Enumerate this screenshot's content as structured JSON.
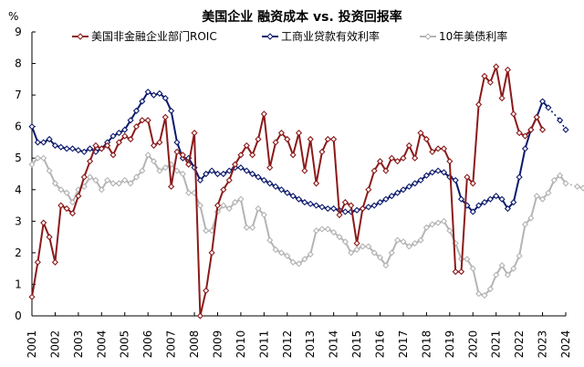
{
  "chart_data": {
    "type": "line",
    "title": "美国企业 融资成本 vs. 投资回报率",
    "ylabel": "%",
    "xlabel": "",
    "ylim": [
      0,
      9
    ],
    "y_ticks": [
      "0",
      "1",
      "2",
      "3",
      "4",
      "5",
      "6",
      "7",
      "8",
      "9"
    ],
    "xlim": [
      2001,
      2024
    ],
    "x_ticks": [
      "2001",
      "2002",
      "2003",
      "2004",
      "2005",
      "2006",
      "2007",
      "2008",
      "2009",
      "2010",
      "2011",
      "2012",
      "2013",
      "2014",
      "2015",
      "2016",
      "2017",
      "2018",
      "2019",
      "2020",
      "2021",
      "2022",
      "2023",
      "2024"
    ],
    "grid": false,
    "legend_position": "top",
    "series": [
      {
        "name": "美国非金融企业部门ROIC",
        "color": "#8b1a1a",
        "marker": "diamond-hollow",
        "points": [
          [
            2001.0,
            0.6
          ],
          [
            2001.25,
            1.7
          ],
          [
            2001.5,
            2.95
          ],
          [
            2001.75,
            2.5
          ],
          [
            2002.0,
            1.7
          ],
          [
            2002.25,
            3.5
          ],
          [
            2002.5,
            3.4
          ],
          [
            2002.75,
            3.25
          ],
          [
            2003.0,
            3.8
          ],
          [
            2003.25,
            4.4
          ],
          [
            2003.5,
            4.9
          ],
          [
            2003.75,
            5.4
          ],
          [
            2004.0,
            5.3
          ],
          [
            2004.25,
            5.4
          ],
          [
            2004.5,
            5.1
          ],
          [
            2004.75,
            5.5
          ],
          [
            2005.0,
            5.7
          ],
          [
            2005.25,
            5.6
          ],
          [
            2005.5,
            6.0
          ],
          [
            2005.75,
            6.2
          ],
          [
            2006.0,
            6.2
          ],
          [
            2006.25,
            5.4
          ],
          [
            2006.5,
            5.5
          ],
          [
            2006.75,
            6.3
          ],
          [
            2007.0,
            4.1
          ],
          [
            2007.25,
            5.2
          ],
          [
            2007.5,
            5.1
          ],
          [
            2007.75,
            4.8
          ],
          [
            2008.0,
            5.8
          ],
          [
            2008.25,
            0.0
          ],
          [
            2008.5,
            0.8
          ],
          [
            2008.75,
            2.0
          ],
          [
            2009.0,
            3.5
          ],
          [
            2009.25,
            4.0
          ],
          [
            2009.5,
            4.3
          ],
          [
            2009.75,
            4.8
          ],
          [
            2010.0,
            5.1
          ],
          [
            2010.25,
            5.4
          ],
          [
            2010.5,
            5.1
          ],
          [
            2010.75,
            5.6
          ],
          [
            2011.0,
            6.4
          ],
          [
            2011.25,
            4.7
          ],
          [
            2011.5,
            5.5
          ],
          [
            2011.75,
            5.8
          ],
          [
            2012.0,
            5.6
          ],
          [
            2012.25,
            5.1
          ],
          [
            2012.5,
            5.8
          ],
          [
            2012.75,
            4.6
          ],
          [
            2013.0,
            5.6
          ],
          [
            2013.25,
            4.2
          ],
          [
            2013.5,
            5.2
          ],
          [
            2013.75,
            5.6
          ],
          [
            2014.0,
            5.6
          ],
          [
            2014.25,
            3.2
          ],
          [
            2014.5,
            3.6
          ],
          [
            2014.75,
            3.5
          ],
          [
            2015.0,
            2.3
          ],
          [
            2015.25,
            3.4
          ],
          [
            2015.5,
            4.0
          ],
          [
            2015.75,
            4.6
          ],
          [
            2016.0,
            4.9
          ],
          [
            2016.25,
            4.6
          ],
          [
            2016.5,
            5.0
          ],
          [
            2016.75,
            4.9
          ],
          [
            2017.0,
            5.0
          ],
          [
            2017.25,
            5.4
          ],
          [
            2017.5,
            5.0
          ],
          [
            2017.75,
            5.8
          ],
          [
            2018.0,
            5.6
          ],
          [
            2018.25,
            5.2
          ],
          [
            2018.5,
            5.3
          ],
          [
            2018.75,
            5.3
          ],
          [
            2019.0,
            4.9
          ],
          [
            2019.25,
            1.4
          ],
          [
            2019.5,
            1.4
          ],
          [
            2019.75,
            4.4
          ],
          [
            2020.0,
            4.2
          ],
          [
            2020.25,
            6.7
          ],
          [
            2020.5,
            7.6
          ],
          [
            2020.75,
            7.4
          ],
          [
            2021.0,
            7.9
          ],
          [
            2021.25,
            6.9
          ],
          [
            2021.5,
            7.8
          ],
          [
            2021.75,
            6.4
          ],
          [
            2022.0,
            5.8
          ],
          [
            2022.25,
            5.7
          ],
          [
            2022.5,
            5.9
          ],
          [
            2022.75,
            6.3
          ],
          [
            2023.0,
            5.9
          ]
        ]
      },
      {
        "name": "工商业贷款有效利率",
        "color": "#0d1a6b",
        "marker": "diamond-hollow",
        "points": [
          [
            2001.0,
            6.0
          ],
          [
            2001.25,
            5.5
          ],
          [
            2001.5,
            5.5
          ],
          [
            2001.75,
            5.6
          ],
          [
            2002.0,
            5.4
          ],
          [
            2002.25,
            5.35
          ],
          [
            2002.5,
            5.3
          ],
          [
            2002.75,
            5.3
          ],
          [
            2003.0,
            5.25
          ],
          [
            2003.25,
            5.2
          ],
          [
            2003.5,
            5.3
          ],
          [
            2003.75,
            5.2
          ],
          [
            2004.0,
            5.3
          ],
          [
            2004.25,
            5.5
          ],
          [
            2004.5,
            5.7
          ],
          [
            2004.75,
            5.8
          ],
          [
            2005.0,
            5.9
          ],
          [
            2005.25,
            6.2
          ],
          [
            2005.5,
            6.5
          ],
          [
            2005.75,
            6.8
          ],
          [
            2006.0,
            7.1
          ],
          [
            2006.25,
            7.0
          ],
          [
            2006.5,
            7.05
          ],
          [
            2006.75,
            6.9
          ],
          [
            2007.0,
            6.5
          ],
          [
            2007.25,
            5.5
          ],
          [
            2007.5,
            5.0
          ],
          [
            2007.75,
            5.0
          ],
          [
            2008.0,
            4.7
          ],
          [
            2008.25,
            4.3
          ],
          [
            2008.5,
            4.5
          ],
          [
            2008.75,
            4.6
          ],
          [
            2009.0,
            4.5
          ],
          [
            2009.25,
            4.5
          ],
          [
            2009.5,
            4.6
          ],
          [
            2009.75,
            4.7
          ],
          [
            2010.0,
            4.7
          ],
          [
            2010.25,
            4.6
          ],
          [
            2010.5,
            4.5
          ],
          [
            2010.75,
            4.4
          ],
          [
            2011.0,
            4.3
          ],
          [
            2011.25,
            4.2
          ],
          [
            2011.5,
            4.1
          ],
          [
            2011.75,
            4.0
          ],
          [
            2012.0,
            3.9
          ],
          [
            2012.25,
            3.8
          ],
          [
            2012.5,
            3.7
          ],
          [
            2012.75,
            3.6
          ],
          [
            2013.0,
            3.55
          ],
          [
            2013.25,
            3.5
          ],
          [
            2013.5,
            3.45
          ],
          [
            2013.75,
            3.4
          ],
          [
            2014.0,
            3.4
          ],
          [
            2014.25,
            3.35
          ],
          [
            2014.5,
            3.3
          ],
          [
            2014.75,
            3.3
          ],
          [
            2015.0,
            3.35
          ],
          [
            2015.25,
            3.4
          ],
          [
            2015.5,
            3.45
          ],
          [
            2015.75,
            3.5
          ],
          [
            2016.0,
            3.6
          ],
          [
            2016.25,
            3.7
          ],
          [
            2016.5,
            3.8
          ],
          [
            2016.75,
            3.9
          ],
          [
            2017.0,
            4.0
          ],
          [
            2017.25,
            4.1
          ],
          [
            2017.5,
            4.2
          ],
          [
            2017.75,
            4.3
          ],
          [
            2018.0,
            4.45
          ],
          [
            2018.25,
            4.55
          ],
          [
            2018.5,
            4.6
          ],
          [
            2018.75,
            4.55
          ],
          [
            2019.0,
            4.4
          ],
          [
            2019.25,
            4.3
          ],
          [
            2019.5,
            3.7
          ],
          [
            2019.75,
            3.5
          ],
          [
            2020.0,
            3.3
          ],
          [
            2020.25,
            3.5
          ],
          [
            2020.5,
            3.6
          ],
          [
            2020.75,
            3.7
          ],
          [
            2021.0,
            3.8
          ],
          [
            2021.25,
            3.7
          ],
          [
            2021.5,
            3.4
          ],
          [
            2021.75,
            3.6
          ],
          [
            2022.0,
            4.4
          ],
          [
            2022.25,
            5.3
          ],
          [
            2022.5,
            5.9
          ],
          [
            2022.75,
            6.3
          ],
          [
            2023.0,
            6.8
          ],
          [
            2023.25,
            6.6
          ]
        ],
        "projection": [
          [
            2023.25,
            6.6
          ],
          [
            2023.75,
            6.2
          ],
          [
            2024.0,
            5.9
          ]
        ]
      },
      {
        "name": "10年美债利率",
        "color": "#b4b4b4",
        "marker": "diamond-hollow",
        "points": [
          [
            2001.0,
            4.8
          ],
          [
            2001.25,
            5.0
          ],
          [
            2001.5,
            5.0
          ],
          [
            2001.75,
            4.6
          ],
          [
            2002.0,
            4.2
          ],
          [
            2002.25,
            4.0
          ],
          [
            2002.5,
            3.9
          ],
          [
            2002.75,
            3.6
          ],
          [
            2003.0,
            4.0
          ],
          [
            2003.25,
            4.1
          ],
          [
            2003.5,
            4.4
          ],
          [
            2003.75,
            4.3
          ],
          [
            2004.0,
            4.0
          ],
          [
            2004.25,
            4.3
          ],
          [
            2004.5,
            4.2
          ],
          [
            2004.75,
            4.2
          ],
          [
            2005.0,
            4.3
          ],
          [
            2005.25,
            4.2
          ],
          [
            2005.5,
            4.4
          ],
          [
            2005.75,
            4.6
          ],
          [
            2006.0,
            5.1
          ],
          [
            2006.25,
            4.9
          ],
          [
            2006.5,
            4.6
          ],
          [
            2006.75,
            4.7
          ],
          [
            2007.0,
            4.8
          ],
          [
            2007.25,
            4.6
          ],
          [
            2007.5,
            4.5
          ],
          [
            2007.75,
            3.9
          ],
          [
            2008.0,
            3.9
          ],
          [
            2008.25,
            3.5
          ],
          [
            2008.5,
            2.7
          ],
          [
            2008.75,
            2.7
          ],
          [
            2009.0,
            3.3
          ],
          [
            2009.25,
            3.5
          ],
          [
            2009.5,
            3.4
          ],
          [
            2009.75,
            3.6
          ],
          [
            2010.0,
            3.7
          ],
          [
            2010.25,
            2.8
          ],
          [
            2010.5,
            2.8
          ],
          [
            2010.75,
            3.4
          ],
          [
            2011.0,
            3.2
          ],
          [
            2011.25,
            2.4
          ],
          [
            2011.5,
            2.1
          ],
          [
            2011.75,
            2.0
          ],
          [
            2012.0,
            1.9
          ],
          [
            2012.25,
            1.7
          ],
          [
            2012.5,
            1.65
          ],
          [
            2012.75,
            1.8
          ],
          [
            2013.0,
            1.95
          ],
          [
            2013.25,
            2.7
          ],
          [
            2013.5,
            2.75
          ],
          [
            2013.75,
            2.75
          ],
          [
            2014.0,
            2.65
          ],
          [
            2014.25,
            2.5
          ],
          [
            2014.5,
            2.35
          ],
          [
            2014.75,
            2.0
          ],
          [
            2015.0,
            2.1
          ],
          [
            2015.25,
            2.2
          ],
          [
            2015.5,
            2.2
          ],
          [
            2015.75,
            2.0
          ],
          [
            2016.0,
            1.85
          ],
          [
            2016.25,
            1.6
          ],
          [
            2016.5,
            2.0
          ],
          [
            2016.75,
            2.4
          ],
          [
            2017.0,
            2.35
          ],
          [
            2017.25,
            2.2
          ],
          [
            2017.5,
            2.3
          ],
          [
            2017.75,
            2.4
          ],
          [
            2018.0,
            2.8
          ],
          [
            2018.25,
            2.9
          ],
          [
            2018.5,
            2.95
          ],
          [
            2018.75,
            3.0
          ],
          [
            2019.0,
            2.7
          ],
          [
            2019.25,
            2.3
          ],
          [
            2019.5,
            1.8
          ],
          [
            2019.75,
            1.8
          ],
          [
            2020.0,
            1.5
          ],
          [
            2020.25,
            0.7
          ],
          [
            2020.5,
            0.65
          ],
          [
            2020.75,
            0.85
          ],
          [
            2021.0,
            1.3
          ],
          [
            2021.25,
            1.6
          ],
          [
            2021.5,
            1.3
          ],
          [
            2021.75,
            1.5
          ],
          [
            2022.0,
            1.9
          ],
          [
            2022.25,
            2.9
          ],
          [
            2022.5,
            3.1
          ],
          [
            2022.75,
            3.8
          ],
          [
            2023.0,
            3.7
          ],
          [
            2023.25,
            3.9
          ],
          [
            2023.5,
            4.3
          ],
          [
            2023.75,
            4.45
          ],
          [
            2024.0,
            4.2
          ]
        ],
        "projection": [
          [
            2024.0,
            4.2
          ],
          [
            2024.5,
            4.1
          ],
          [
            2024.75,
            4.05
          ]
        ]
      }
    ]
  }
}
